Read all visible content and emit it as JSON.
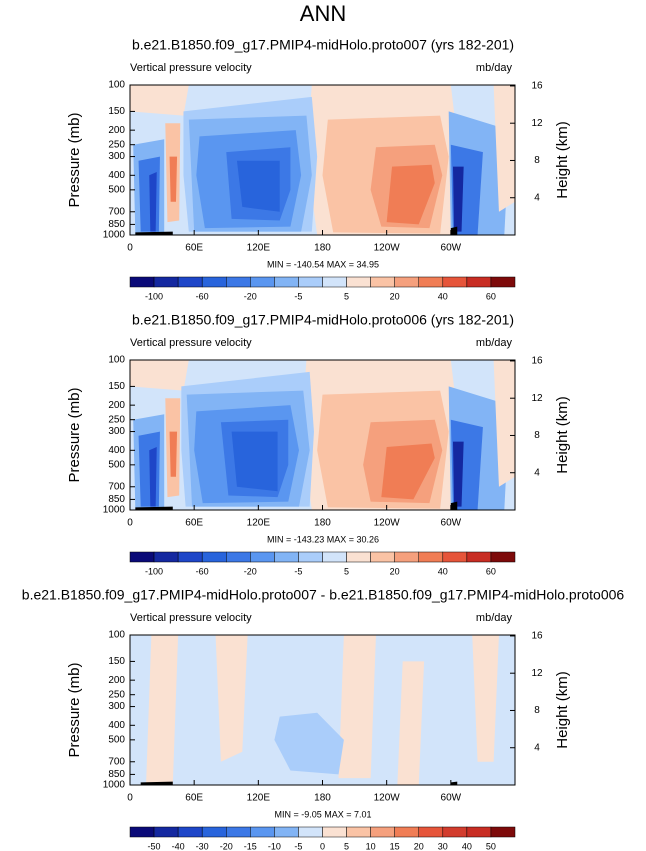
{
  "title": "ANN",
  "chart_data": [
    {
      "type": "contour",
      "title": "b.e21.B1850.f09_g17.PMIP4-midHolo.proto007 (yrs 182-201)",
      "left_label": "Vertical pressure velocity",
      "right_label": "mb/day",
      "ylabel": "Pressure (mb)",
      "y2label": "Height (km)",
      "xlim": [
        0,
        360
      ],
      "xticks": [
        0,
        {
          "value": 60,
          "label": "60E"
        },
        {
          "value": 120,
          "label": "120E"
        },
        180,
        {
          "value": 240,
          "label": "120W"
        },
        {
          "value": 300,
          "label": "60W"
        }
      ],
      "ylim": [
        1000,
        100
      ],
      "log_y": true,
      "yticks": [
        100,
        150,
        200,
        250,
        300,
        400,
        500,
        700,
        850,
        1000
      ],
      "y2lim": [
        0,
        16.1
      ],
      "y2ticks": [
        4,
        8,
        12,
        16
      ],
      "stats": "MIN = -140.54  MAX =  34.95",
      "colorbar": {
        "colors": [
          "#0a0a78",
          "#1428a0",
          "#1e46c8",
          "#2864dc",
          "#3c78e6",
          "#5a96f0",
          "#82b4f5",
          "#aacdfa",
          "#d2e4fa",
          "#fae1d2",
          "#fac3a5",
          "#f5a07d",
          "#f07d55",
          "#e6553a",
          "#c82d23",
          "#7d0a0a"
        ],
        "labels": [
          -100,
          null,
          -60,
          null,
          -20,
          null,
          -5,
          null,
          5,
          null,
          20,
          null,
          40,
          null,
          60
        ]
      },
      "regions": [
        {
          "color": "#d2e4fa",
          "lon": [
            0,
            360,
            360,
            0
          ],
          "pressure": [
            100,
            100,
            1000,
            1000
          ]
        },
        {
          "color": "#fae1d2",
          "lon": [
            0,
            55,
            50,
            0
          ],
          "pressure": [
            100,
            100,
            160,
            150
          ]
        },
        {
          "color": "#fae1d2",
          "lon": [
            170,
            300,
            305,
            300,
            175,
            165
          ],
          "pressure": [
            100,
            100,
            200,
            1000,
            1000,
            300
          ]
        },
        {
          "color": "#fac3a5",
          "lon": [
            185,
            290,
            298,
            290,
            190,
            180
          ],
          "pressure": [
            170,
            160,
            300,
            980,
            960,
            400
          ]
        },
        {
          "color": "#f5a07d",
          "lon": [
            230,
            285,
            292,
            280,
            235,
            225
          ],
          "pressure": [
            260,
            250,
            400,
            900,
            880,
            500
          ]
        },
        {
          "color": "#f07d55",
          "lon": [
            245,
            282,
            285,
            270,
            240
          ],
          "pressure": [
            350,
            340,
            450,
            850,
            820
          ]
        },
        {
          "color": "#aacdfa",
          "lon": [
            50,
            170,
            175,
            170,
            55,
            50
          ],
          "pressure": [
            150,
            120,
            300,
            950,
            950,
            400
          ]
        },
        {
          "color": "#82b4f5",
          "lon": [
            55,
            165,
            170,
            160,
            60
          ],
          "pressure": [
            170,
            160,
            400,
            950,
            950
          ]
        },
        {
          "color": "#5a96f0",
          "lon": [
            65,
            155,
            160,
            150,
            70,
            62
          ],
          "pressure": [
            220,
            200,
            400,
            880,
            900,
            400
          ]
        },
        {
          "color": "#3c78e6",
          "lon": [
            90,
            150,
            150,
            140,
            95
          ],
          "pressure": [
            280,
            260,
            500,
            800,
            780
          ]
        },
        {
          "color": "#2864dc",
          "lon": [
            100,
            140,
            140,
            105
          ],
          "pressure": [
            320,
            320,
            700,
            650
          ]
        },
        {
          "color": "#82b4f5",
          "lon": [
            3,
            32,
            32,
            5
          ],
          "pressure": [
            250,
            230,
            1000,
            1000
          ]
        },
        {
          "color": "#3c78e6",
          "lon": [
            8,
            28,
            27,
            10
          ],
          "pressure": [
            320,
            300,
            950,
            950
          ]
        },
        {
          "color": "#1e46c8",
          "lon": [
            18,
            25,
            24,
            19
          ],
          "pressure": [
            400,
            380,
            950,
            950
          ]
        },
        {
          "color": "#fac3a5",
          "lon": [
            33,
            47,
            46,
            35
          ],
          "pressure": [
            180,
            180,
            800,
            820
          ]
        },
        {
          "color": "#f07d55",
          "lon": [
            37,
            44,
            43,
            38
          ],
          "pressure": [
            300,
            300,
            600,
            600
          ]
        },
        {
          "color": "#82b4f5",
          "lon": [
            298,
            355,
            350,
            300
          ],
          "pressure": [
            150,
            200,
            1000,
            1000
          ]
        },
        {
          "color": "#3c78e6",
          "lon": [
            300,
            330,
            325,
            302
          ],
          "pressure": [
            250,
            280,
            1000,
            1000
          ]
        },
        {
          "color": "#1428a0",
          "lon": [
            302,
            312,
            310,
            303
          ],
          "pressure": [
            350,
            350,
            950,
            950
          ]
        },
        {
          "color": "#fae1d2",
          "lon": [
            340,
            360,
            360,
            345
          ],
          "pressure": [
            100,
            100,
            600,
            700
          ]
        },
        {
          "color": "#000000",
          "lon": [
            5,
            40,
            40,
            5
          ],
          "pressure": [
            960,
            950,
            1000,
            1000
          ]
        },
        {
          "color": "#000000",
          "lon": [
            300,
            306,
            306,
            300
          ],
          "pressure": [
            900,
            880,
            1000,
            1000
          ]
        }
      ]
    },
    {
      "type": "contour",
      "title": "b.e21.B1850.f09_g17.PMIP4-midHolo.proto006 (yrs 182-201)",
      "left_label": "Vertical pressure velocity",
      "right_label": "mb/day",
      "ylabel": "Pressure (mb)",
      "y2label": "Height (km)",
      "xlim": [
        0,
        360
      ],
      "xticks": [
        0,
        {
          "value": 60,
          "label": "60E"
        },
        {
          "value": 120,
          "label": "120E"
        },
        180,
        {
          "value": 240,
          "label": "120W"
        },
        {
          "value": 300,
          "label": "60W"
        }
      ],
      "ylim": [
        1000,
        100
      ],
      "log_y": true,
      "yticks": [
        100,
        150,
        200,
        250,
        300,
        400,
        500,
        700,
        850,
        1000
      ],
      "y2lim": [
        0,
        16.1
      ],
      "y2ticks": [
        4,
        8,
        12,
        16
      ],
      "stats": "MIN = -143.23  MAX =  30.26",
      "colorbar": {
        "colors": [
          "#0a0a78",
          "#1428a0",
          "#1e46c8",
          "#2864dc",
          "#3c78e6",
          "#5a96f0",
          "#82b4f5",
          "#aacdfa",
          "#d2e4fa",
          "#fae1d2",
          "#fac3a5",
          "#f5a07d",
          "#f07d55",
          "#e6553a",
          "#c82d23",
          "#7d0a0a"
        ],
        "labels": [
          -100,
          null,
          -60,
          null,
          -20,
          null,
          -5,
          null,
          5,
          null,
          20,
          null,
          40,
          null,
          60
        ]
      },
      "regions": [
        {
          "color": "#d2e4fa",
          "lon": [
            0,
            360,
            360,
            0
          ],
          "pressure": [
            100,
            100,
            1000,
            1000
          ]
        },
        {
          "color": "#fae1d2",
          "lon": [
            0,
            55,
            50,
            0
          ],
          "pressure": [
            100,
            100,
            160,
            150
          ]
        },
        {
          "color": "#fae1d2",
          "lon": [
            165,
            300,
            305,
            300,
            170,
            160
          ],
          "pressure": [
            100,
            100,
            200,
            1000,
            1000,
            300
          ]
        },
        {
          "color": "#fac3a5",
          "lon": [
            180,
            290,
            298,
            290,
            185,
            175
          ],
          "pressure": [
            170,
            160,
            300,
            980,
            960,
            400
          ]
        },
        {
          "color": "#f5a07d",
          "lon": [
            225,
            285,
            292,
            280,
            225,
            218
          ],
          "pressure": [
            260,
            250,
            400,
            900,
            880,
            500
          ]
        },
        {
          "color": "#f07d55",
          "lon": [
            240,
            282,
            285,
            265,
            235
          ],
          "pressure": [
            380,
            360,
            450,
            850,
            820
          ]
        },
        {
          "color": "#aacdfa",
          "lon": [
            48,
            168,
            172,
            168,
            52,
            48
          ],
          "pressure": [
            150,
            120,
            300,
            950,
            950,
            400
          ]
        },
        {
          "color": "#82b4f5",
          "lon": [
            53,
            162,
            168,
            158,
            58
          ],
          "pressure": [
            170,
            160,
            400,
            950,
            950
          ]
        },
        {
          "color": "#5a96f0",
          "lon": [
            62,
            150,
            158,
            148,
            68,
            60
          ],
          "pressure": [
            220,
            200,
            400,
            880,
            900,
            400
          ]
        },
        {
          "color": "#3c78e6",
          "lon": [
            85,
            148,
            148,
            138,
            92
          ],
          "pressure": [
            260,
            250,
            500,
            820,
            800
          ]
        },
        {
          "color": "#2864dc",
          "lon": [
            95,
            138,
            138,
            100
          ],
          "pressure": [
            300,
            300,
            750,
            700
          ]
        },
        {
          "color": "#82b4f5",
          "lon": [
            3,
            32,
            32,
            5
          ],
          "pressure": [
            250,
            230,
            1000,
            1000
          ]
        },
        {
          "color": "#3c78e6",
          "lon": [
            8,
            28,
            27,
            10
          ],
          "pressure": [
            320,
            300,
            950,
            950
          ]
        },
        {
          "color": "#1e46c8",
          "lon": [
            18,
            25,
            24,
            19
          ],
          "pressure": [
            400,
            380,
            950,
            950
          ]
        },
        {
          "color": "#fac3a5",
          "lon": [
            33,
            47,
            46,
            35
          ],
          "pressure": [
            180,
            180,
            800,
            820
          ]
        },
        {
          "color": "#f07d55",
          "lon": [
            37,
            44,
            43,
            38
          ],
          "pressure": [
            300,
            300,
            600,
            600
          ]
        },
        {
          "color": "#82b4f5",
          "lon": [
            298,
            355,
            350,
            300
          ],
          "pressure": [
            150,
            200,
            1000,
            1000
          ]
        },
        {
          "color": "#3c78e6",
          "lon": [
            300,
            330,
            325,
            302
          ],
          "pressure": [
            250,
            280,
            1000,
            1000
          ]
        },
        {
          "color": "#1428a0",
          "lon": [
            302,
            312,
            310,
            303
          ],
          "pressure": [
            350,
            350,
            950,
            950
          ]
        },
        {
          "color": "#fae1d2",
          "lon": [
            340,
            360,
            360,
            345
          ],
          "pressure": [
            100,
            100,
            600,
            700
          ]
        },
        {
          "color": "#000000",
          "lon": [
            5,
            40,
            40,
            5
          ],
          "pressure": [
            960,
            950,
            1000,
            1000
          ]
        },
        {
          "color": "#000000",
          "lon": [
            300,
            306,
            306,
            300
          ],
          "pressure": [
            900,
            880,
            1000,
            1000
          ]
        }
      ]
    },
    {
      "type": "contour",
      "title": "b.e21.B1850.f09_g17.PMIP4-midHolo.proto007 - b.e21.B1850.f09_g17.PMIP4-midHolo.proto006",
      "left_label": "Vertical pressure velocity",
      "right_label": "mb/day",
      "ylabel": "Pressure (mb)",
      "y2label": "Height (km)",
      "xlim": [
        0,
        360
      ],
      "xticks": [
        0,
        {
          "value": 60,
          "label": "60E"
        },
        {
          "value": 120,
          "label": "120E"
        },
        180,
        {
          "value": 240,
          "label": "120W"
        },
        {
          "value": 300,
          "label": "60W"
        }
      ],
      "ylim": [
        1000,
        100
      ],
      "log_y": true,
      "yticks": [
        100,
        150,
        200,
        250,
        300,
        400,
        500,
        700,
        850,
        1000
      ],
      "y2lim": [
        0,
        16.1
      ],
      "y2ticks": [
        4,
        8,
        12,
        16
      ],
      "stats": "MIN = -9.05  MAX =  7.01",
      "colorbar": {
        "colors": [
          "#0a0a78",
          "#1428a0",
          "#1e46c8",
          "#2864dc",
          "#3c78e6",
          "#5a96f0",
          "#82b4f5",
          "#d2e4fa",
          "#fae1d2",
          "#fac3a5",
          "#f5a07d",
          "#f07d55",
          "#e6553a",
          "#d23c2d",
          "#c82d23",
          "#7d0a0a"
        ],
        "labels": [
          -50,
          -40,
          -30,
          -20,
          -15,
          -10,
          -5,
          0,
          5,
          10,
          15,
          20,
          30,
          40,
          50
        ]
      },
      "regions": [
        {
          "color": "#d2e4fa",
          "lon": [
            0,
            360,
            360,
            0
          ],
          "pressure": [
            100,
            100,
            1000,
            1000
          ]
        },
        {
          "color": "#fae1d2",
          "lon": [
            20,
            45,
            40,
            15
          ],
          "pressure": [
            100,
            100,
            1000,
            1000
          ]
        },
        {
          "color": "#fae1d2",
          "lon": [
            80,
            110,
            105,
            85
          ],
          "pressure": [
            100,
            100,
            600,
            700
          ]
        },
        {
          "color": "#fae1d2",
          "lon": [
            200,
            230,
            225,
            195
          ],
          "pressure": [
            100,
            100,
            900,
            900
          ]
        },
        {
          "color": "#fae1d2",
          "lon": [
            255,
            275,
            270,
            250
          ],
          "pressure": [
            150,
            150,
            1000,
            1000
          ]
        },
        {
          "color": "#fae1d2",
          "lon": [
            320,
            345,
            340,
            325
          ],
          "pressure": [
            100,
            100,
            700,
            700
          ]
        },
        {
          "color": "#aacdfa",
          "lon": [
            140,
            175,
            200,
            195,
            150,
            135
          ],
          "pressure": [
            350,
            330,
            500,
            850,
            800,
            500
          ]
        },
        {
          "color": "#000000",
          "lon": [
            10,
            40,
            40,
            10
          ],
          "pressure": [
            960,
            950,
            1000,
            1000
          ]
        },
        {
          "color": "#000000",
          "lon": [
            300,
            306,
            306,
            300
          ],
          "pressure": [
            960,
            950,
            1000,
            1000
          ]
        }
      ]
    }
  ]
}
